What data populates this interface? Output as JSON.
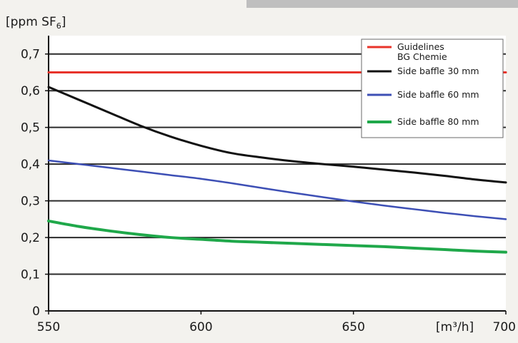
{
  "chart_data": {
    "type": "line",
    "ylabel": "[ppm SF",
    "ylabel_sub": "6",
    "ylabel_close": "]",
    "xlabel": "[m³/h]",
    "xlim": [
      550,
      700
    ],
    "ylim": [
      0,
      0.75
    ],
    "x_ticks": [
      550,
      600,
      650,
      700
    ],
    "x_tick_labels": [
      "550",
      "600",
      "650",
      "700"
    ],
    "y_ticks": [
      0,
      0.1,
      0.2,
      0.3,
      0.4,
      0.5,
      0.6,
      0.7
    ],
    "y_tick_labels": [
      "0",
      "0,1",
      "0,2",
      "0,3",
      "0,4",
      "0,5",
      "0,6",
      "0,7"
    ],
    "grid": true,
    "legend_position": "top-right",
    "series": [
      {
        "name_lines": [
          "Guidelines",
          "BG Chemie"
        ],
        "color": "#e8332a",
        "width": 3,
        "x": [
          550,
          700
        ],
        "y": [
          0.65,
          0.65
        ]
      },
      {
        "name_lines": [
          "Side baffle 30 mm"
        ],
        "color": "#111111",
        "width": 3,
        "x": [
          550,
          560,
          570,
          580,
          590,
          600,
          610,
          620,
          630,
          640,
          650,
          660,
          670,
          680,
          690,
          700
        ],
        "y": [
          0.61,
          0.575,
          0.54,
          0.505,
          0.475,
          0.45,
          0.43,
          0.418,
          0.408,
          0.4,
          0.393,
          0.385,
          0.377,
          0.368,
          0.358,
          0.35
        ]
      },
      {
        "name_lines": [
          "Side baffle 60 mm"
        ],
        "color": "#3d4fb5",
        "width": 2.5,
        "x": [
          550,
          560,
          570,
          580,
          590,
          600,
          610,
          620,
          630,
          640,
          650,
          660,
          670,
          680,
          690,
          700
        ],
        "y": [
          0.41,
          0.4,
          0.39,
          0.38,
          0.37,
          0.36,
          0.348,
          0.335,
          0.322,
          0.31,
          0.298,
          0.287,
          0.277,
          0.267,
          0.258,
          0.25
        ]
      },
      {
        "name_lines": [
          "Side baffle 80 mm"
        ],
        "color": "#1fa84a",
        "width": 4,
        "x": [
          550,
          560,
          570,
          580,
          590,
          600,
          610,
          620,
          630,
          640,
          650,
          660,
          670,
          680,
          690,
          700
        ],
        "y": [
          0.245,
          0.23,
          0.218,
          0.208,
          0.2,
          0.195,
          0.19,
          0.187,
          0.184,
          0.181,
          0.178,
          0.175,
          0.171,
          0.167,
          0.163,
          0.16
        ]
      }
    ]
  }
}
